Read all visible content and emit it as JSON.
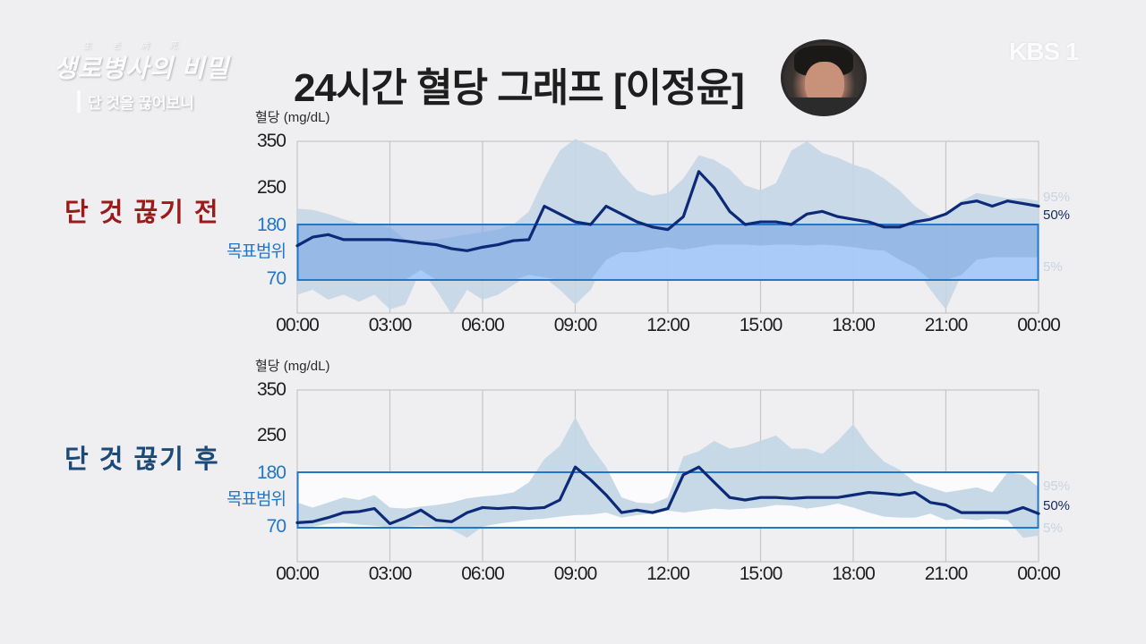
{
  "branding": {
    "show_small": "生老病死",
    "show_title": "생로병사의 비밀",
    "episode": "단 것을 끊어보니",
    "channel_logo": "KBS 1"
  },
  "title": "24시간 혈당 그래프 [이정윤]",
  "avatar_label": "person-photo",
  "colors": {
    "median_line": "#0d2a78",
    "band_95": "#c4d6e6",
    "target_box_border": "#2277c8",
    "target_fill_before": "#7ea5dc",
    "target_fill_after": "#fbfbfd",
    "label_before": "#9b1a1a",
    "label_after": "#1c4a78"
  },
  "chart_data": [
    {
      "type": "area",
      "title": "단 것 끊기 전",
      "ylabel": "혈당 (mg/dL)",
      "xlabel": "",
      "yticks": [
        350,
        250,
        180,
        70
      ],
      "target_range": {
        "label": "목표범위",
        "low": 70,
        "high": 180
      },
      "x": [
        "00:00",
        "00:30",
        "01:00",
        "01:30",
        "02:00",
        "02:30",
        "03:00",
        "03:30",
        "04:00",
        "04:30",
        "05:00",
        "05:30",
        "06:00",
        "06:30",
        "07:00",
        "07:30",
        "08:00",
        "08:30",
        "09:00",
        "09:30",
        "10:00",
        "10:30",
        "11:00",
        "11:30",
        "12:00",
        "12:30",
        "13:00",
        "13:30",
        "14:00",
        "14:30",
        "15:00",
        "15:30",
        "16:00",
        "16:30",
        "17:00",
        "17:30",
        "18:00",
        "18:30",
        "19:00",
        "19:30",
        "20:00",
        "20:30",
        "21:00",
        "21:30",
        "22:00",
        "22:30",
        "23:00",
        "23:30",
        "24:00"
      ],
      "xticks": [
        "00:00",
        "03:00",
        "06:00",
        "09:00",
        "12:00",
        "15:00",
        "18:00",
        "21:00",
        "00:00"
      ],
      "legend": [
        "95%",
        "50%",
        "5%"
      ],
      "series": [
        {
          "name": "95%",
          "values": [
            210,
            208,
            200,
            190,
            182,
            180,
            175,
            150,
            148,
            150,
            155,
            160,
            165,
            170,
            180,
            205,
            270,
            330,
            355,
            340,
            325,
            280,
            245,
            235,
            240,
            270,
            320,
            310,
            290,
            255,
            245,
            260,
            330,
            350,
            325,
            315,
            300,
            290,
            270,
            245,
            215,
            195,
            200,
            225,
            240,
            235,
            230,
            230,
            225
          ]
        },
        {
          "name": "50%",
          "values": [
            138,
            155,
            160,
            150,
            150,
            150,
            150,
            147,
            143,
            140,
            132,
            128,
            135,
            140,
            148,
            150,
            215,
            200,
            185,
            180,
            215,
            200,
            185,
            175,
            170,
            195,
            285,
            250,
            205,
            180,
            185,
            185,
            180,
            200,
            205,
            195,
            190,
            185,
            175,
            175,
            185,
            190,
            200,
            220,
            225,
            215,
            225,
            220,
            215
          ]
        },
        {
          "name": "5%",
          "values": [
            55,
            60,
            50,
            55,
            48,
            55,
            40,
            45,
            90,
            60,
            35,
            60,
            50,
            55,
            65,
            80,
            75,
            60,
            45,
            60,
            110,
            125,
            125,
            130,
            135,
            130,
            135,
            140,
            140,
            140,
            138,
            140,
            140,
            138,
            140,
            138,
            135,
            130,
            128,
            110,
            95,
            60,
            40,
            80,
            110,
            115,
            115,
            115,
            115
          ]
        }
      ]
    },
    {
      "type": "area",
      "title": "단 것 끊기 후",
      "ylabel": "혈당 (mg/dL)",
      "xlabel": "",
      "yticks": [
        350,
        250,
        180,
        70
      ],
      "target_range": {
        "label": "목표범위",
        "low": 70,
        "high": 180
      },
      "x": [
        "00:00",
        "00:30",
        "01:00",
        "01:30",
        "02:00",
        "02:30",
        "03:00",
        "03:30",
        "04:00",
        "04:30",
        "05:00",
        "05:30",
        "06:00",
        "06:30",
        "07:00",
        "07:30",
        "08:00",
        "08:30",
        "09:00",
        "09:30",
        "10:00",
        "10:30",
        "11:00",
        "11:30",
        "12:00",
        "12:30",
        "13:00",
        "13:30",
        "14:00",
        "14:30",
        "15:00",
        "15:30",
        "16:00",
        "16:30",
        "17:00",
        "17:30",
        "18:00",
        "18:30",
        "19:00",
        "19:30",
        "20:00",
        "20:30",
        "21:00",
        "21:30",
        "22:00",
        "22:30",
        "23:00",
        "23:30",
        "24:00"
      ],
      "xticks": [
        "00:00",
        "03:00",
        "06:00",
        "09:00",
        "12:00",
        "15:00",
        "18:00",
        "21:00",
        "00:00"
      ],
      "legend": [
        "95%",
        "50%",
        "5%"
      ],
      "series": [
        {
          "name": "95%",
          "values": [
            120,
            110,
            120,
            130,
            125,
            135,
            110,
            108,
            112,
            115,
            120,
            128,
            132,
            135,
            140,
            160,
            205,
            230,
            290,
            230,
            190,
            130,
            120,
            118,
            130,
            210,
            220,
            240,
            225,
            230,
            240,
            250,
            225,
            225,
            215,
            240,
            275,
            230,
            200,
            185,
            160,
            150,
            140,
            145,
            150,
            140,
            180,
            175,
            150
          ]
        },
        {
          "name": "50%",
          "values": [
            80,
            82,
            90,
            100,
            102,
            108,
            78,
            90,
            105,
            85,
            82,
            100,
            110,
            108,
            110,
            108,
            110,
            125,
            190,
            165,
            135,
            100,
            105,
            100,
            108,
            175,
            190,
            160,
            130,
            125,
            130,
            130,
            128,
            130,
            130,
            130,
            135,
            140,
            138,
            135,
            140,
            120,
            115,
            100,
            100,
            100,
            100,
            110,
            98
          ]
        },
        {
          "name": "5%",
          "values": [
            72,
            72,
            78,
            80,
            76,
            74,
            70,
            72,
            74,
            72,
            68,
            60,
            72,
            78,
            82,
            86,
            88,
            92,
            95,
            96,
            100,
            90,
            95,
            98,
            104,
            100,
            104,
            108,
            106,
            108,
            110,
            115,
            114,
            108,
            112,
            118,
            110,
            100,
            92,
            90,
            90,
            98,
            85,
            88,
            85,
            88,
            85,
            60,
            62
          ]
        }
      ]
    }
  ]
}
